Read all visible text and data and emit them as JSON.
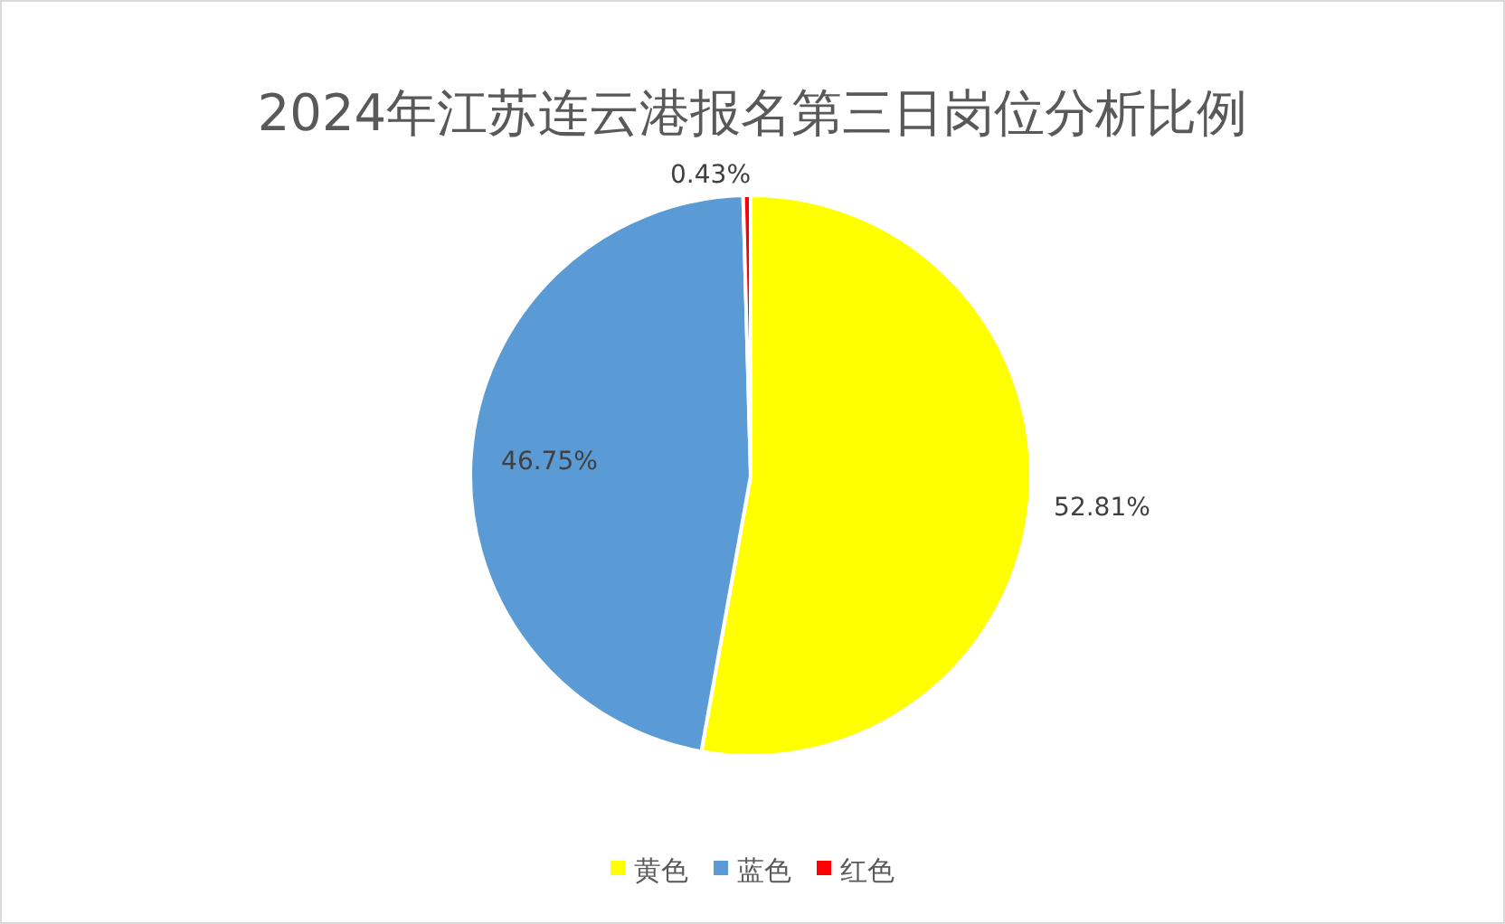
{
  "chart_data": {
    "type": "pie",
    "title": "2024年江苏连云港报名第三日岗位分析比例",
    "categories": [
      "黄色",
      "蓝色",
      "红色"
    ],
    "values": [
      52.81,
      46.75,
      0.43
    ],
    "colors": [
      "#ffff00",
      "#5b9bd5",
      "#ff0000"
    ],
    "value_labels": [
      "52.81%",
      "46.75%",
      "0.43%"
    ],
    "legend": "bottom"
  }
}
